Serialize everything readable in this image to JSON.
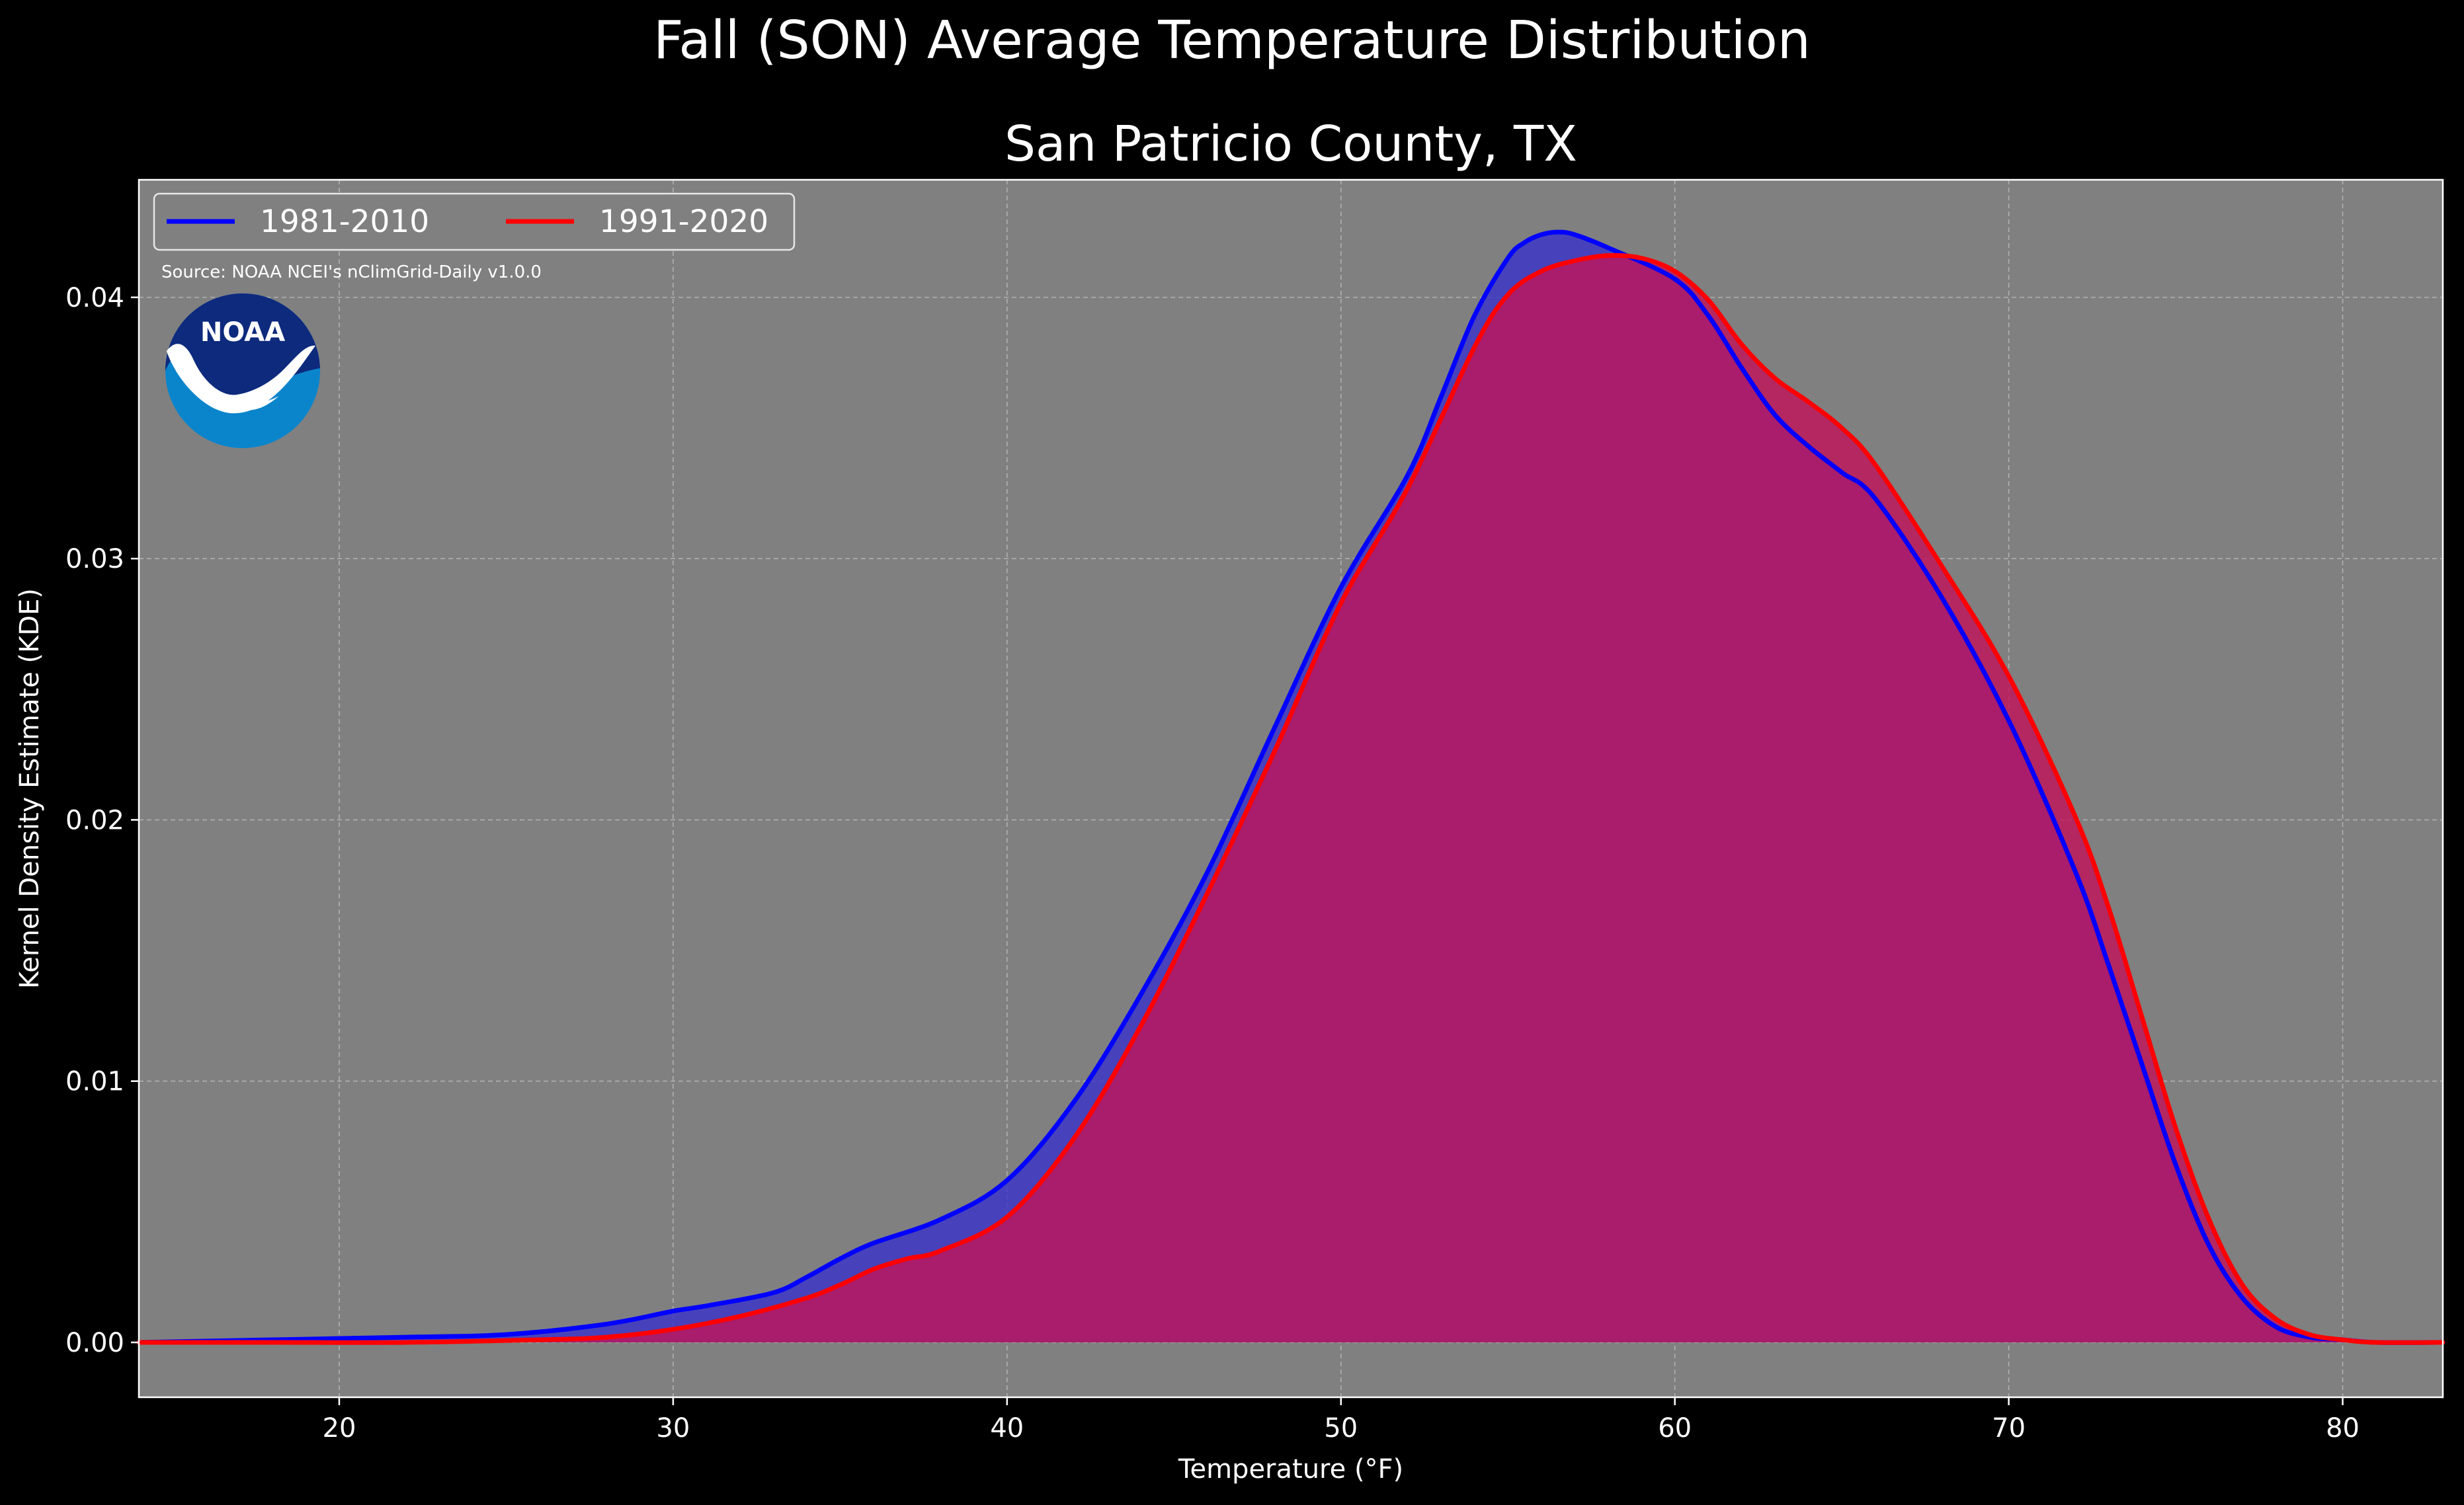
{
  "figure": {
    "title": "Fall (SON) Average Temperature Distribution",
    "source_note": "Source: NOAA NCEI's nClimGrid-Daily v1.0.0",
    "logo_text": "NOAA",
    "background_color": "#000000",
    "plot_background_color": "#808080"
  },
  "chart_data": {
    "type": "area",
    "title": "San Patricio County, TX",
    "xlabel": "Temperature ($^\\circ$F)",
    "xlabel_display": "Temperature (°F)",
    "ylabel": "Kernel Density Estimate (KDE)",
    "xlim": [
      14,
      83
    ],
    "ylim": [
      -0.0021,
      0.0445
    ],
    "x_ticks": [
      20,
      30,
      40,
      50,
      60,
      70,
      80
    ],
    "y_ticks": [
      0.0,
      0.01,
      0.02,
      0.03,
      0.04
    ],
    "y_tick_labels": [
      "0.00",
      "0.01",
      "0.02",
      "0.03",
      "0.04"
    ],
    "grid": true,
    "legend": {
      "position": "top-left",
      "columns": 2
    },
    "series": [
      {
        "name": "1981-2010",
        "line_color": "#0000ff",
        "fill_color": "#3a35c8",
        "x": [
          14,
          18,
          22,
          25,
          28,
          30,
          31,
          33,
          34,
          35,
          36,
          38,
          40,
          42,
          44,
          46,
          48,
          50,
          52,
          53,
          54,
          55,
          55.5,
          56,
          56.5,
          57,
          58,
          60,
          61,
          62,
          63,
          64,
          65,
          66,
          68,
          70,
          72,
          73,
          74,
          75,
          76,
          77,
          78,
          79,
          80,
          81,
          83
        ],
        "y": [
          0.0,
          0.0001,
          0.0002,
          0.0003,
          0.0007,
          0.0012,
          0.0014,
          0.0019,
          0.0025,
          0.0032,
          0.0038,
          0.0047,
          0.0062,
          0.0092,
          0.0133,
          0.018,
          0.0235,
          0.0289,
          0.0332,
          0.0362,
          0.0393,
          0.0415,
          0.0421,
          0.0424,
          0.0425,
          0.0424,
          0.0419,
          0.0407,
          0.0393,
          0.0373,
          0.0355,
          0.0343,
          0.0333,
          0.0323,
          0.0285,
          0.0238,
          0.018,
          0.0144,
          0.0106,
          0.0068,
          0.0037,
          0.0017,
          0.0006,
          0.0002,
          0.0001,
          0.0,
          0.0
        ]
      },
      {
        "name": "1991-2020",
        "line_color": "#ff0000",
        "fill_color": "#c0145a",
        "x": [
          14,
          18,
          22,
          26,
          28,
          30,
          32,
          34,
          35,
          36,
          37,
          38,
          40,
          42,
          44,
          46,
          48,
          50,
          52,
          54,
          55,
          56,
          57,
          58,
          59,
          60,
          61,
          62,
          63,
          64,
          65,
          66,
          68,
          70,
          72,
          73,
          74,
          75,
          76,
          77,
          78,
          79,
          80,
          81,
          83
        ],
        "y": [
          0.0,
          0.0,
          0.0,
          0.0001,
          0.0002,
          0.0005,
          0.001,
          0.0017,
          0.0022,
          0.0028,
          0.0032,
          0.0035,
          0.0048,
          0.0078,
          0.0121,
          0.0172,
          0.0226,
          0.0283,
          0.0327,
          0.0381,
          0.0401,
          0.041,
          0.0414,
          0.0416,
          0.0415,
          0.041,
          0.0399,
          0.0382,
          0.0369,
          0.036,
          0.035,
          0.0336,
          0.0297,
          0.0255,
          0.0201,
          0.0166,
          0.0124,
          0.0082,
          0.0047,
          0.0022,
          0.0009,
          0.0003,
          0.0001,
          0.0,
          0.0
        ]
      }
    ]
  }
}
